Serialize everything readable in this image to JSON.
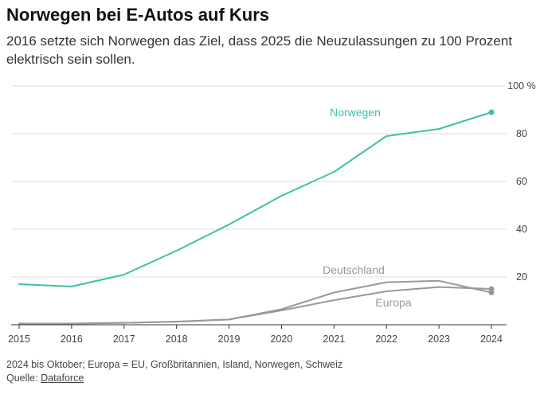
{
  "header": {
    "title": "Norwegen bei E-Autos auf Kurs",
    "subtitle": "2016 setzte sich Norwegen das Ziel, dass 2025 die Neuzulassungen zu 100 Prozent elektrisch sein sollen."
  },
  "footer": {
    "note": "2024 bis Oktober; Europa = EU, Großbritannien, Island, Norwegen, Schweiz",
    "source_label": "Quelle: ",
    "source_link": "Dataforce"
  },
  "chart_data": {
    "type": "line",
    "x": [
      2015,
      2016,
      2017,
      2018,
      2019,
      2020,
      2021,
      2022,
      2023,
      2024
    ],
    "ylim": [
      0,
      100
    ],
    "yticks": [
      20,
      40,
      60,
      80,
      100
    ],
    "ytick_labels": [
      "20",
      "40",
      "60",
      "80",
      "100 %"
    ],
    "grid": true,
    "series": [
      {
        "name": "Norwegen",
        "color": "#3dbfa8",
        "values": [
          17,
          16,
          21,
          31,
          42,
          54,
          64,
          79,
          82,
          89
        ]
      },
      {
        "name": "Deutschland",
        "color": "#999999",
        "values": [
          0.5,
          0.5,
          0.8,
          1.3,
          2.2,
          6.5,
          13.5,
          17.8,
          18.4,
          13.5
        ]
      },
      {
        "name": "Europa",
        "color": "#999999",
        "values": [
          0.5,
          0.5,
          0.8,
          1.3,
          2.2,
          6,
          10.3,
          14,
          15.8,
          15
        ]
      }
    ]
  }
}
